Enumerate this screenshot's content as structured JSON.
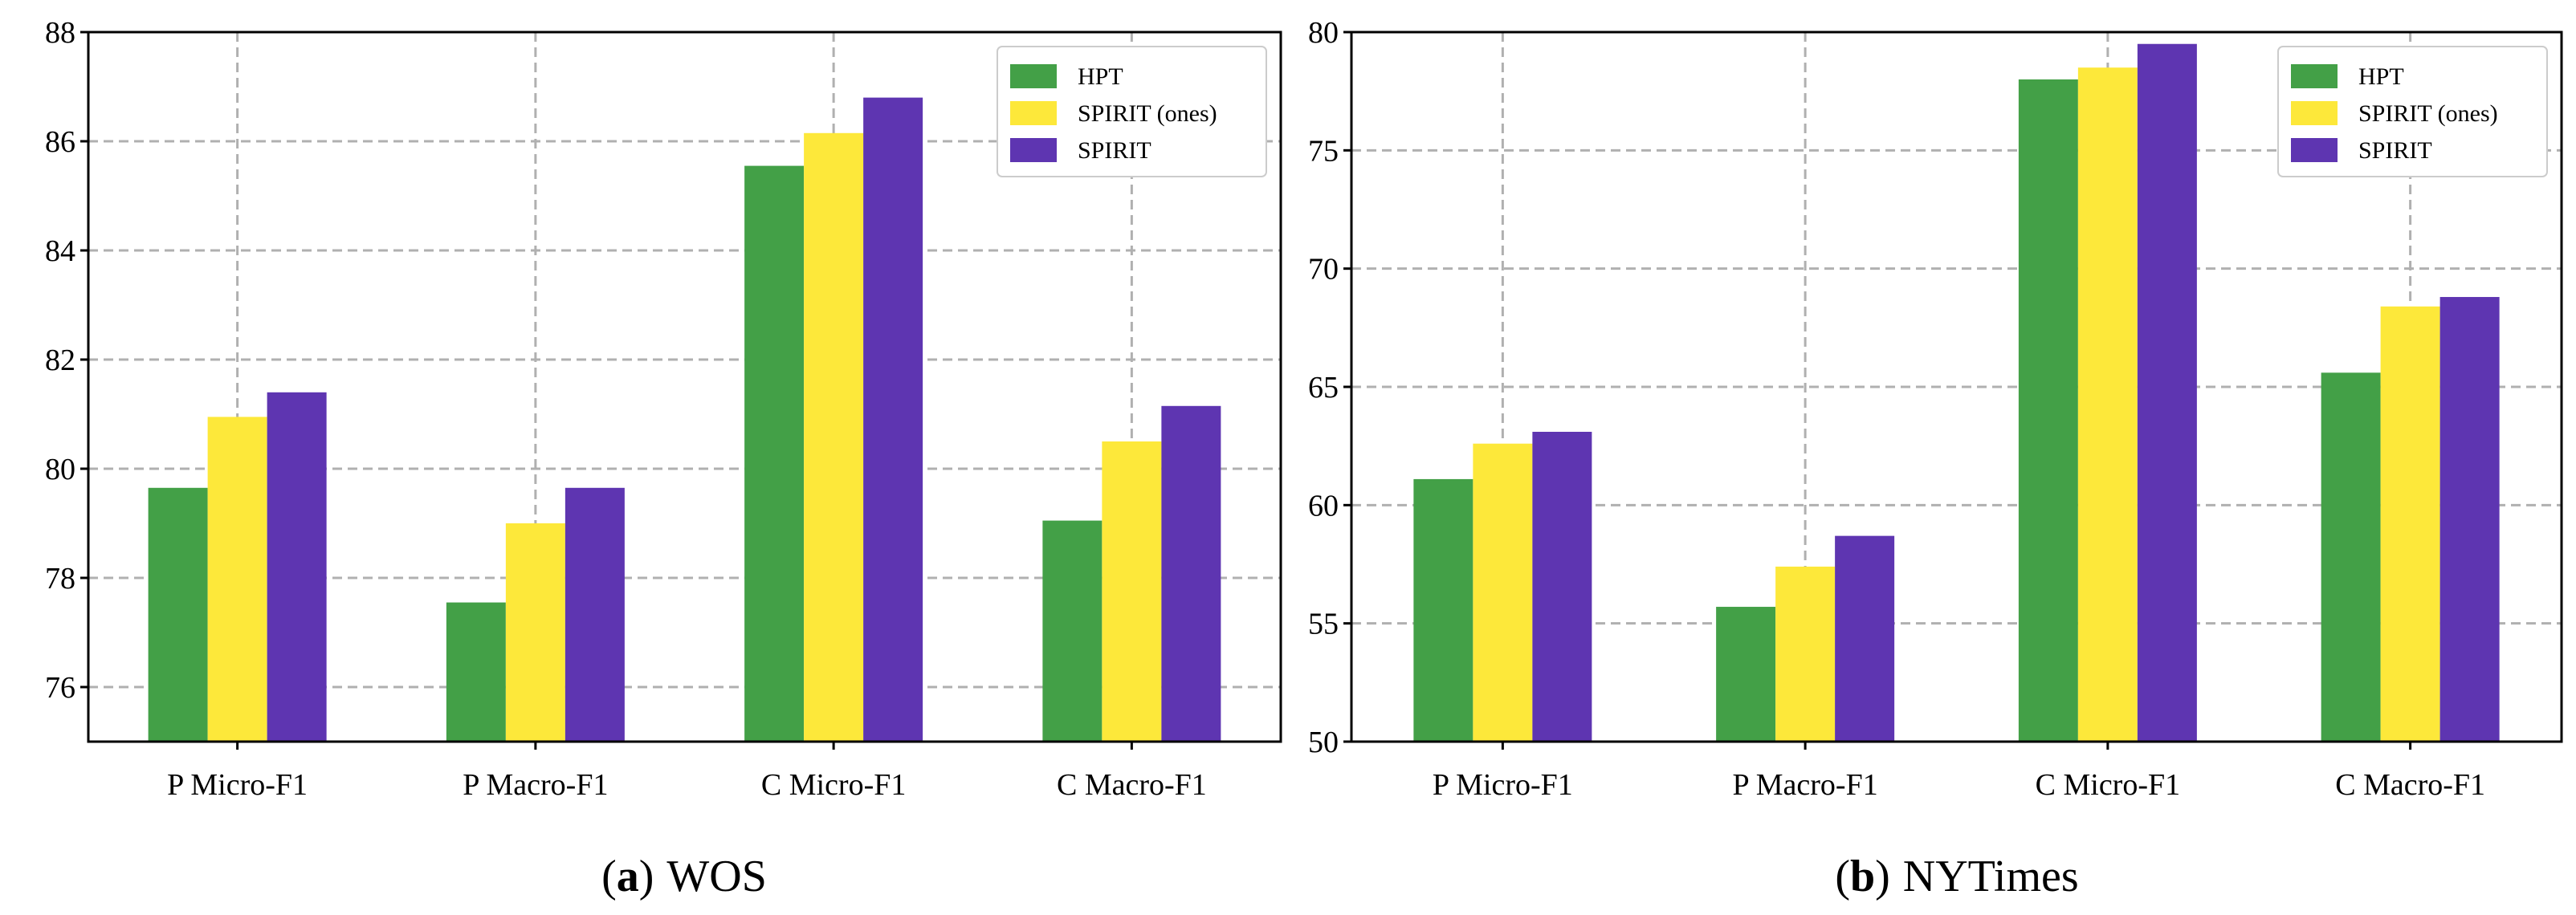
{
  "colors": {
    "HPT": "#43a047",
    "SPIRIT (ones)": "#fde83a",
    "SPIRIT": "#5e35b1"
  },
  "chart_data": [
    {
      "type": "bar",
      "caption_label": "a",
      "caption_paren_open": "(",
      "caption_paren_close": ")",
      "caption_text": "WOS",
      "categories": [
        "P Micro-F1",
        "P Macro-F1",
        "C Micro-F1",
        "C Macro-F1"
      ],
      "series": [
        {
          "name": "HPT",
          "values": [
            79.65,
            77.55,
            85.55,
            79.05
          ]
        },
        {
          "name": "SPIRIT (ones)",
          "values": [
            80.95,
            79.0,
            86.15,
            80.5
          ]
        },
        {
          "name": "SPIRIT",
          "values": [
            81.4,
            79.65,
            86.8,
            81.15
          ]
        }
      ],
      "ylim": [
        75,
        88
      ],
      "yticks": [
        76,
        78,
        80,
        82,
        84,
        86,
        88
      ],
      "grid": true,
      "legend_position": "top-right"
    },
    {
      "type": "bar",
      "caption_label": "b",
      "caption_paren_open": "(",
      "caption_paren_close": ")",
      "caption_text": "NYTimes",
      "categories": [
        "P Micro-F1",
        "P Macro-F1",
        "C Micro-F1",
        "C Macro-F1"
      ],
      "series": [
        {
          "name": "HPT",
          "values": [
            61.1,
            55.7,
            78.0,
            65.6
          ]
        },
        {
          "name": "SPIRIT (ones)",
          "values": [
            62.6,
            57.4,
            78.5,
            68.4
          ]
        },
        {
          "name": "SPIRIT",
          "values": [
            63.1,
            58.7,
            79.5,
            68.8
          ]
        }
      ],
      "ylim": [
        50,
        80
      ],
      "yticks": [
        50,
        55,
        60,
        65,
        70,
        75,
        80
      ],
      "grid": true,
      "legend_position": "top-right"
    }
  ]
}
